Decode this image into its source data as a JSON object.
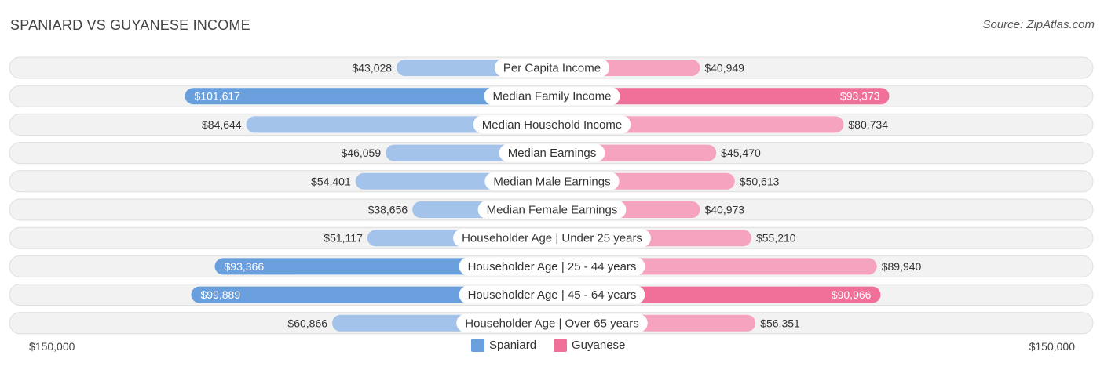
{
  "title": "SPANIARD VS GUYANESE INCOME",
  "source": "Source: ZipAtlas.com",
  "colors": {
    "spaniard_light": "#a3c3ea",
    "spaniard_strong": "#6a9fdd",
    "guyanese_light": "#f6a3bf",
    "guyanese_strong": "#f07099",
    "row_bg": "#f2f2f2",
    "row_border": "#dedede"
  },
  "chart_data": {
    "type": "bar",
    "orientation": "horizontal-diverging",
    "title": "SPANIARD VS GUYANESE INCOME",
    "categories": [
      "Per Capita Income",
      "Median Family Income",
      "Median Household Income",
      "Median Earnings",
      "Median Male Earnings",
      "Median Female Earnings",
      "Householder Age | Under 25 years",
      "Householder Age | 25 - 44 years",
      "Householder Age | 45 - 64 years",
      "Householder Age | Over 65 years"
    ],
    "series": [
      {
        "name": "Spaniard",
        "side": "left",
        "values": [
          43028,
          101617,
          84644,
          46059,
          54401,
          38656,
          51117,
          93366,
          99889,
          60866
        ],
        "labels": [
          "$43,028",
          "$101,617",
          "$84,644",
          "$46,059",
          "$54,401",
          "$38,656",
          "$51,117",
          "$93,366",
          "$99,889",
          "$60,866"
        ]
      },
      {
        "name": "Guyanese",
        "side": "right",
        "values": [
          40949,
          93373,
          80734,
          45470,
          50613,
          40973,
          55210,
          89940,
          90966,
          56351
        ],
        "labels": [
          "$40,949",
          "$93,373",
          "$80,734",
          "$45,470",
          "$50,613",
          "$40,973",
          "$55,210",
          "$89,940",
          "$90,966",
          "$56,351"
        ]
      }
    ],
    "xlim": [
      -150000,
      150000
    ],
    "axis_min_label": "$150,000",
    "axis_max_label": "$150,000",
    "legend": [
      "Spaniard",
      "Guyanese"
    ],
    "legend_position": "bottom-center"
  }
}
